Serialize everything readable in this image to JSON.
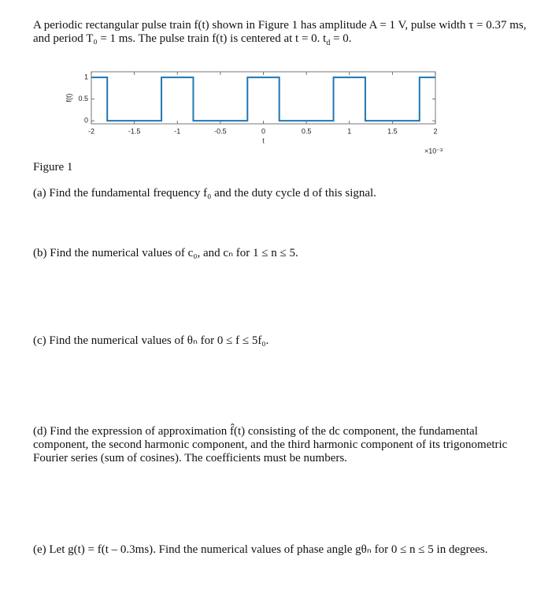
{
  "intro": [
    "A periodic rectangular pulse train f(t) shown in Figure 1 has amplitude A = 1 V, pulse width τ = 0.37 ms, and period T₀ = 1 ms. The pulse train f(t) is centered at t = 0. t",
    "d",
    " = 0."
  ],
  "chart_data": {
    "type": "line",
    "xlabel": "t",
    "ylabel": "f(t)",
    "x_scale_label": "×10⁻³",
    "x": [
      -2,
      -1.815,
      -1.815,
      -1.185,
      -1.185,
      -0.815,
      -0.815,
      -0.185,
      -0.185,
      0.185,
      0.185,
      0.815,
      0.815,
      1.185,
      1.185,
      1.815,
      1.815,
      2
    ],
    "values": [
      1,
      1,
      0,
      0,
      1,
      1,
      0,
      0,
      1,
      1,
      0,
      0,
      1,
      1,
      0,
      0,
      1,
      1
    ],
    "color": "#1f77b4",
    "xlim": [
      -2,
      2
    ],
    "ylim": [
      -0.07,
      1.13
    ],
    "xticks": [
      -2,
      -1.5,
      -1,
      -0.5,
      0,
      0.5,
      1,
      1.5,
      2
    ],
    "yticks": [
      0,
      0.5,
      1
    ]
  },
  "figure_caption": "Figure 1",
  "questions": [
    "(a) Find the fundamental frequency f₀ and the duty cycle d of this signal.",
    "(b) Find the numerical values of c₀, and cₙ for 1 ≤ n ≤ 5.",
    "(c) Find the numerical values of θₙ for 0 ≤ f ≤ 5f₀.",
    "(d) Find the expression of approximation f̂(t) consisting of the dc component, the fundamental component, the second harmonic component, and the third harmonic component of its trigonometric Fourier series (sum of cosines).  The coefficients must be numbers.",
    "(e) Let g(t) = f(t – 0.3ms). Find the numerical values of phase angle gθₙ for 0 ≤ n ≤ 5 in degrees."
  ]
}
